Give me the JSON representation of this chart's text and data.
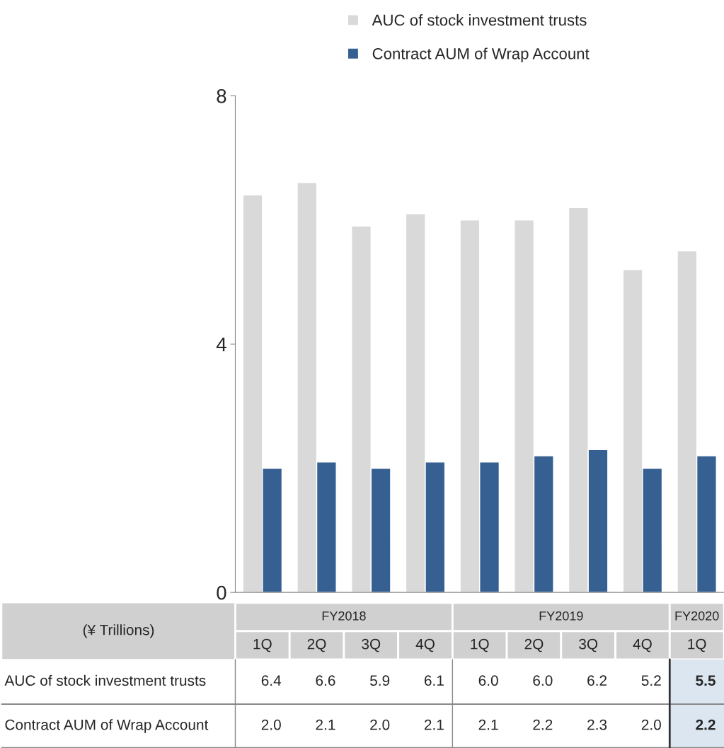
{
  "chart_data": {
    "type": "bar",
    "ylabel": "(¥ Trillions)",
    "categories": [
      "1Q",
      "2Q",
      "3Q",
      "4Q",
      "1Q",
      "2Q",
      "3Q",
      "4Q",
      "1Q"
    ],
    "series": [
      {
        "name": "AUC of stock investment trusts",
        "color": "#d9d9d9",
        "values": [
          6.4,
          6.6,
          5.9,
          6.1,
          6.0,
          6.0,
          6.2,
          5.2,
          5.5
        ],
        "value_labels": [
          "6.4",
          "6.6",
          "5.9",
          "6.1",
          "6.0",
          "6.0",
          "6.2",
          "5.2",
          "5.5"
        ]
      },
      {
        "name": "Contract AUM of Wrap Account",
        "color": "#366092",
        "values": [
          2.0,
          2.1,
          2.0,
          2.1,
          2.1,
          2.2,
          2.3,
          2.0,
          2.2
        ],
        "value_labels": [
          "2.0",
          "2.1",
          "2.0",
          "2.1",
          "2.1",
          "2.2",
          "2.3",
          "2.0",
          "2.2"
        ]
      }
    ],
    "annotations": [
      "FY2018",
      "FY2019",
      "FY2020"
    ],
    "ylim": [
      0,
      8
    ],
    "yticks": [
      0,
      4,
      8
    ],
    "grid": false,
    "legend": "top"
  }
}
